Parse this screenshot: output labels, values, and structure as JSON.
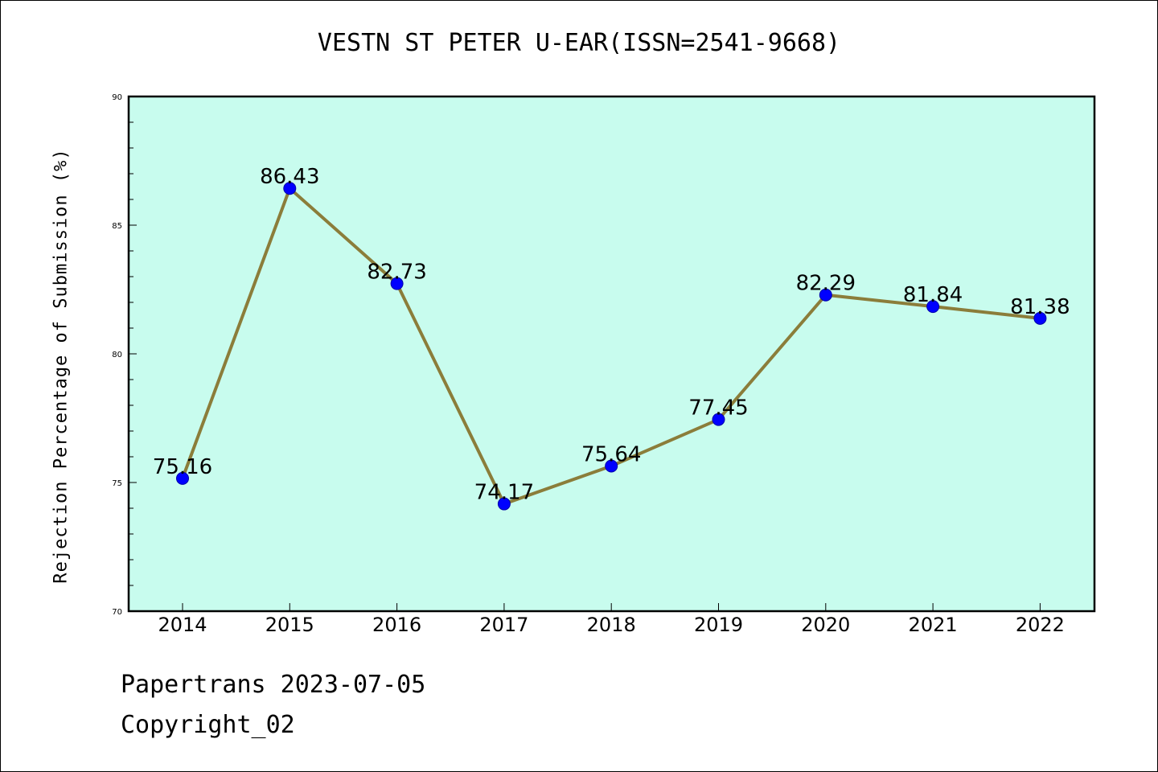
{
  "chart_data": {
    "type": "line",
    "title": "VESTN ST PETER U-EAR(ISSN=2541-9668)",
    "xlabel": "",
    "ylabel": "Rejection Percentage of Submission (%)",
    "categories": [
      "2014",
      "2015",
      "2016",
      "2017",
      "2018",
      "2019",
      "2020",
      "2021",
      "2022"
    ],
    "series": [
      {
        "values": [
          75.16,
          86.43,
          82.73,
          74.17,
          75.64,
          77.45,
          82.29,
          81.84,
          81.38
        ],
        "labels": [
          "75.16",
          "86.43",
          "82.73",
          "74.17",
          "75.64",
          "77.45",
          "82.29",
          "81.84",
          "81.38"
        ],
        "line_color": "#8b7d3a",
        "marker_color": "#0000ff"
      }
    ],
    "ylim": [
      70,
      90
    ],
    "yticks": [
      "70",
      "75",
      "80",
      "85",
      "90"
    ],
    "plot_background": "#c8fcee",
    "grid": false,
    "legend": "none"
  },
  "footer": {
    "line1": "Papertrans 2023-07-05",
    "line2": "Copyright_02"
  }
}
